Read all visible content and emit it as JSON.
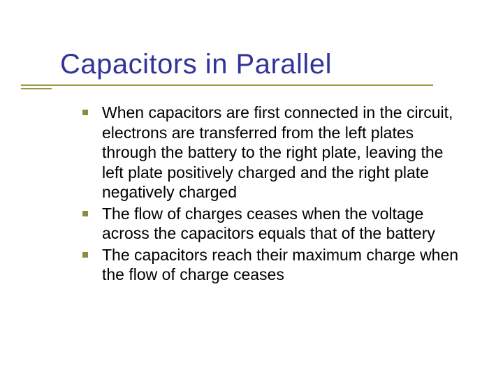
{
  "slide": {
    "title": "Capacitors in Parallel",
    "title_color": "#333399",
    "title_fontsize": 40,
    "rule_color": "#9b9741",
    "bullet_color": "#8f8a3f",
    "body_color": "#000000",
    "body_fontsize": 23,
    "background_color": "#ffffff",
    "bullets": [
      "When capacitors are first connected in the circuit, electrons are transferred from the left plates through the battery to the right plate, leaving the left plate positively charged and the right plate negatively charged",
      "The flow of charges ceases when the voltage across the capacitors equals that of the battery",
      "The capacitors reach their maximum charge when the flow of charge ceases"
    ]
  }
}
